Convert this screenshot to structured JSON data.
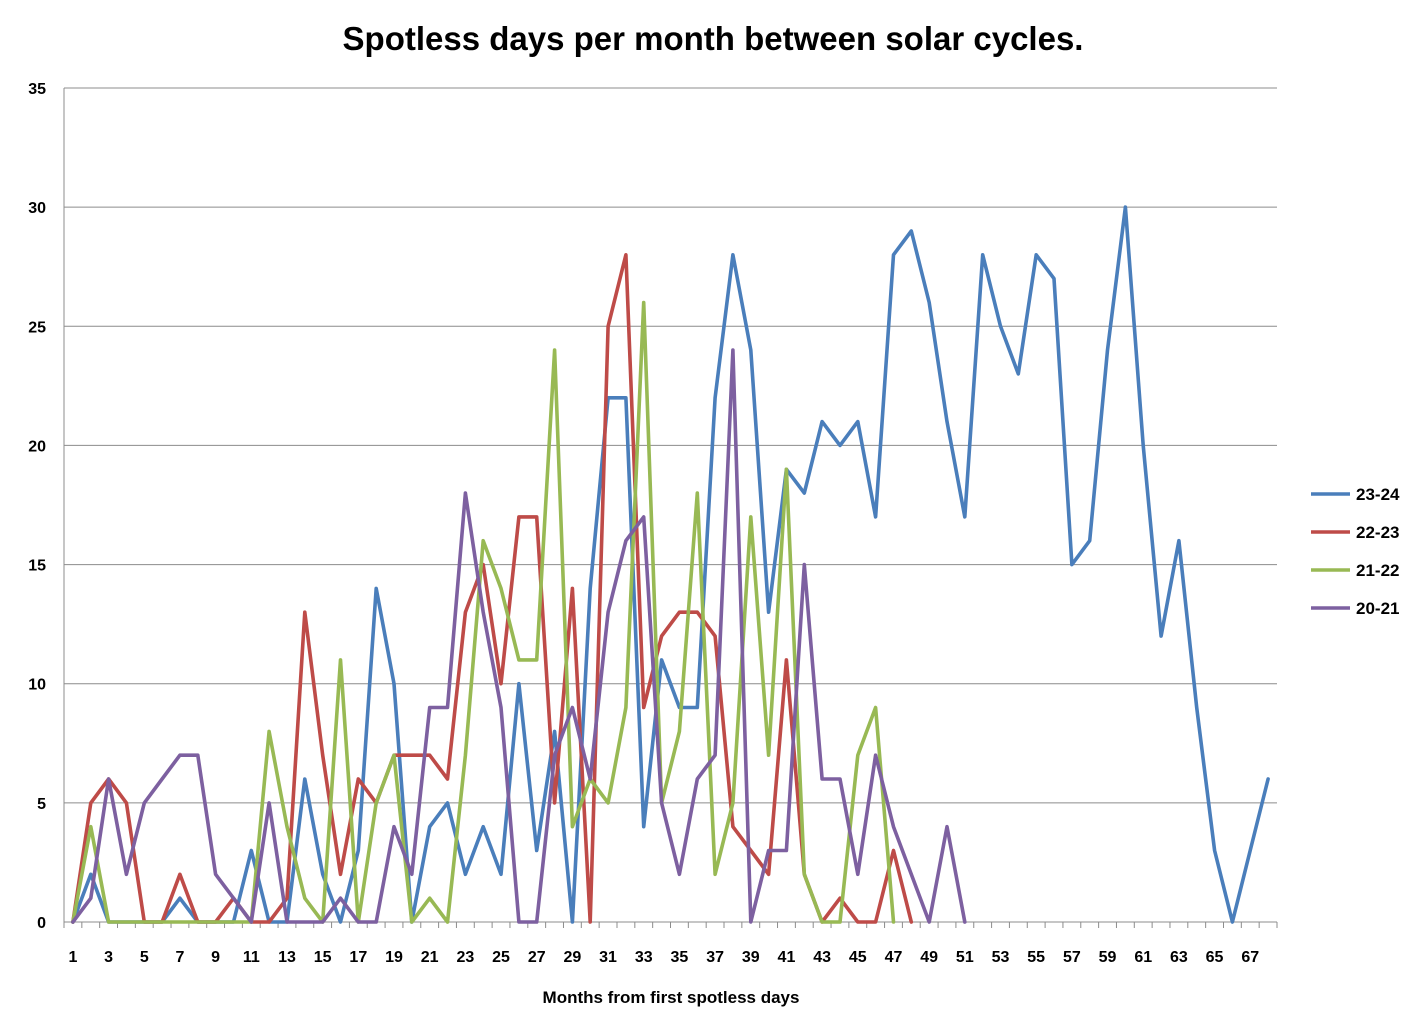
{
  "chart_data": {
    "type": "line",
    "title": "Spotless days per month between solar cycles.",
    "xlabel": "Months from first spotless days",
    "ylabel": "",
    "ylim": [
      0,
      35
    ],
    "yticks": [
      0,
      5,
      10,
      15,
      20,
      25,
      30,
      35
    ],
    "xlim": [
      1,
      68
    ],
    "xtick_labels": [
      "1",
      "3",
      "5",
      "7",
      "9",
      "11",
      "13",
      "15",
      "17",
      "19",
      "21",
      "23",
      "25",
      "27",
      "29",
      "31",
      "33",
      "35",
      "37",
      "39",
      "41",
      "43",
      "45",
      "47",
      "49",
      "51",
      "53",
      "55",
      "57",
      "59",
      "61",
      "63",
      "65",
      "67"
    ],
    "grid": true,
    "legend_position": "right",
    "series": [
      {
        "name": "23-24",
        "color": "#4a7ebb",
        "values": [
          0,
          2,
          0,
          0,
          0,
          0,
          1,
          0,
          0,
          0,
          3,
          0,
          0,
          6,
          2,
          0,
          3,
          14,
          10,
          0,
          4,
          5,
          2,
          4,
          2,
          10,
          3,
          8,
          0,
          14,
          22,
          22,
          4,
          11,
          9,
          9,
          22,
          28,
          24,
          13,
          19,
          18,
          21,
          20,
          21,
          17,
          28,
          29,
          26,
          21,
          17,
          28,
          25,
          23,
          28,
          27,
          15,
          16,
          24,
          30,
          20,
          12,
          16,
          9,
          3,
          0,
          3,
          6
        ]
      },
      {
        "name": "22-23",
        "color": "#be4b48",
        "values": [
          0,
          5,
          6,
          5,
          0,
          0,
          2,
          0,
          0,
          1,
          0,
          0,
          1,
          13,
          7,
          2,
          6,
          5,
          7,
          7,
          7,
          6,
          13,
          15,
          10,
          17,
          17,
          5,
          14,
          0,
          25,
          28,
          9,
          12,
          13,
          13,
          12,
          4,
          3,
          2,
          11,
          2,
          0,
          1,
          0,
          0,
          3,
          0
        ]
      },
      {
        "name": "21-22",
        "color": "#98b954",
        "values": [
          0,
          4,
          0,
          0,
          0,
          0,
          0,
          0,
          0,
          0,
          0,
          8,
          4,
          1,
          0,
          11,
          0,
          5,
          7,
          0,
          1,
          0,
          7,
          16,
          14,
          11,
          11,
          24,
          4,
          6,
          5,
          9,
          26,
          5,
          8,
          18,
          2,
          5,
          17,
          7,
          19,
          2,
          0,
          0,
          7,
          9,
          0
        ]
      },
      {
        "name": "20-21",
        "color": "#7d60a0",
        "values": [
          0,
          1,
          6,
          2,
          5,
          6,
          7,
          7,
          2,
          1,
          0,
          5,
          0,
          0,
          0,
          1,
          0,
          0,
          4,
          2,
          9,
          9,
          18,
          13,
          9,
          0,
          0,
          7,
          9,
          6,
          13,
          16,
          17,
          5,
          2,
          6,
          7,
          24,
          0,
          3,
          3,
          15,
          6,
          6,
          2,
          7,
          4,
          2,
          0,
          4,
          0
        ]
      }
    ]
  }
}
